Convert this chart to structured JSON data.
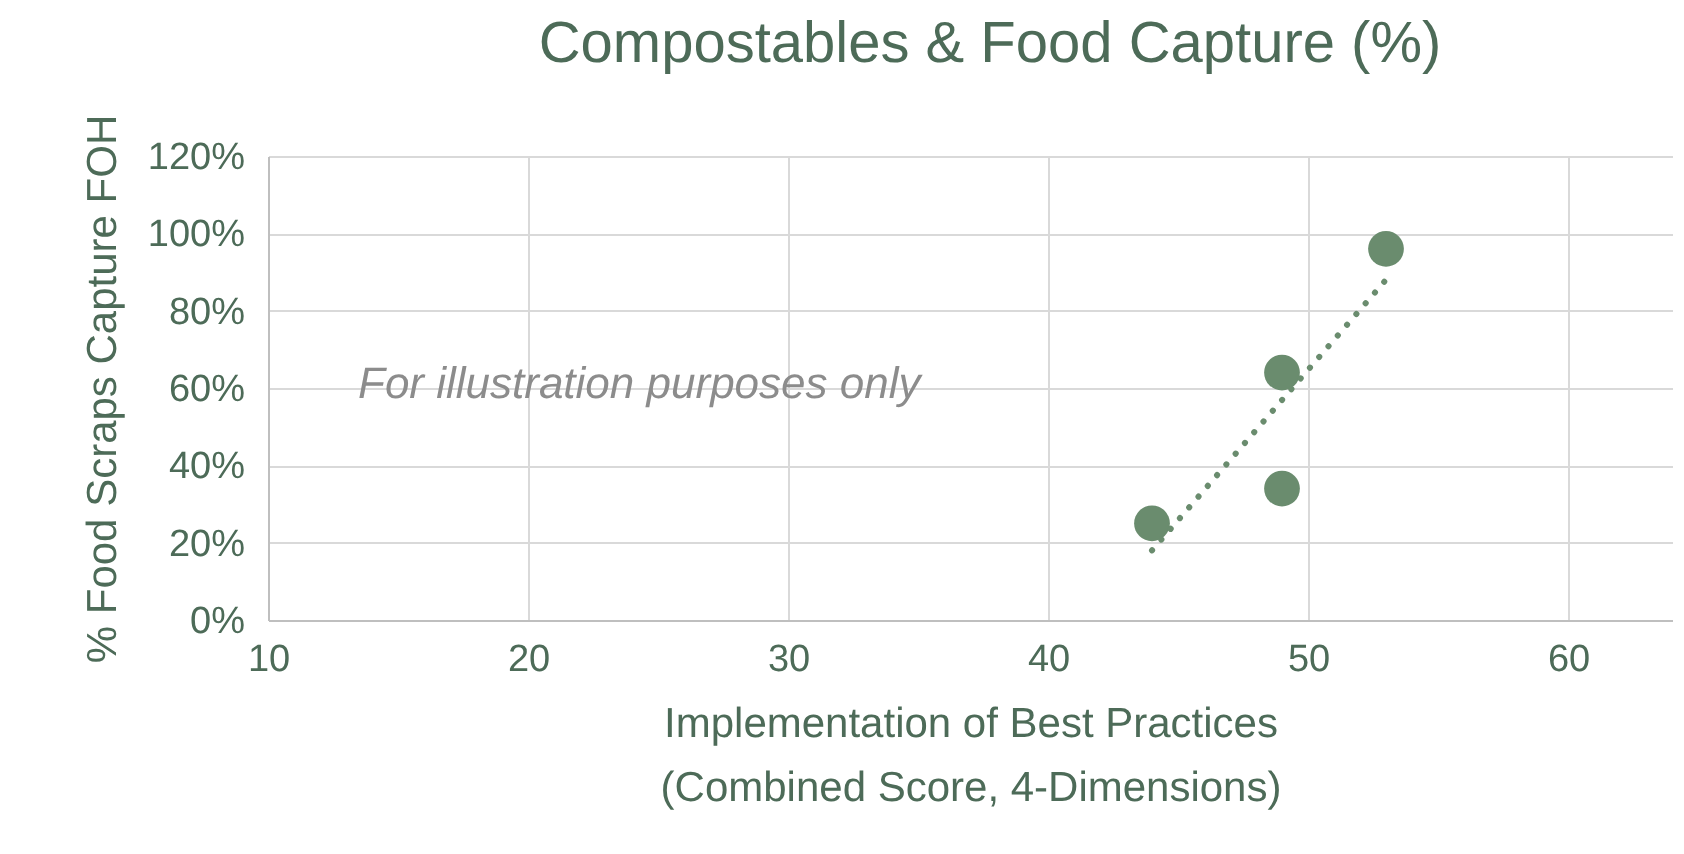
{
  "chart_data": {
    "type": "scatter",
    "title": "Compostables & Food Capture (%)",
    "xlabel": "Implementation of Best Practices\n(Combined Score, 4-Dimensions)",
    "ylabel": "% Food Scraps Capture FOH",
    "annotations": [
      "For illustration purposes only"
    ],
    "series": [
      {
        "color": "#6a8c6e",
        "x": [
          44,
          49,
          49,
          53
        ],
        "values": [
          25,
          64,
          34,
          96
        ],
        "marker": "circle"
      },
      {
        "type": "line",
        "color": "#6a8c6e",
        "x": [
          44,
          53
        ],
        "values": [
          18,
          88
        ],
        "line_style": "dotted"
      }
    ],
    "xlim": [
      10,
      64
    ],
    "xticks": [
      10,
      20,
      30,
      40,
      50,
      60
    ],
    "ylim": [
      0,
      120
    ],
    "yticks": [
      {
        "value": 0,
        "label": "0%"
      },
      {
        "value": 20,
        "label": "20%"
      },
      {
        "value": 40,
        "label": "40%"
      },
      {
        "value": 60,
        "label": "60%"
      },
      {
        "value": 80,
        "label": "80%"
      },
      {
        "value": 100,
        "label": "100%"
      },
      {
        "value": 120,
        "label": "120%"
      }
    ],
    "grid": true
  }
}
